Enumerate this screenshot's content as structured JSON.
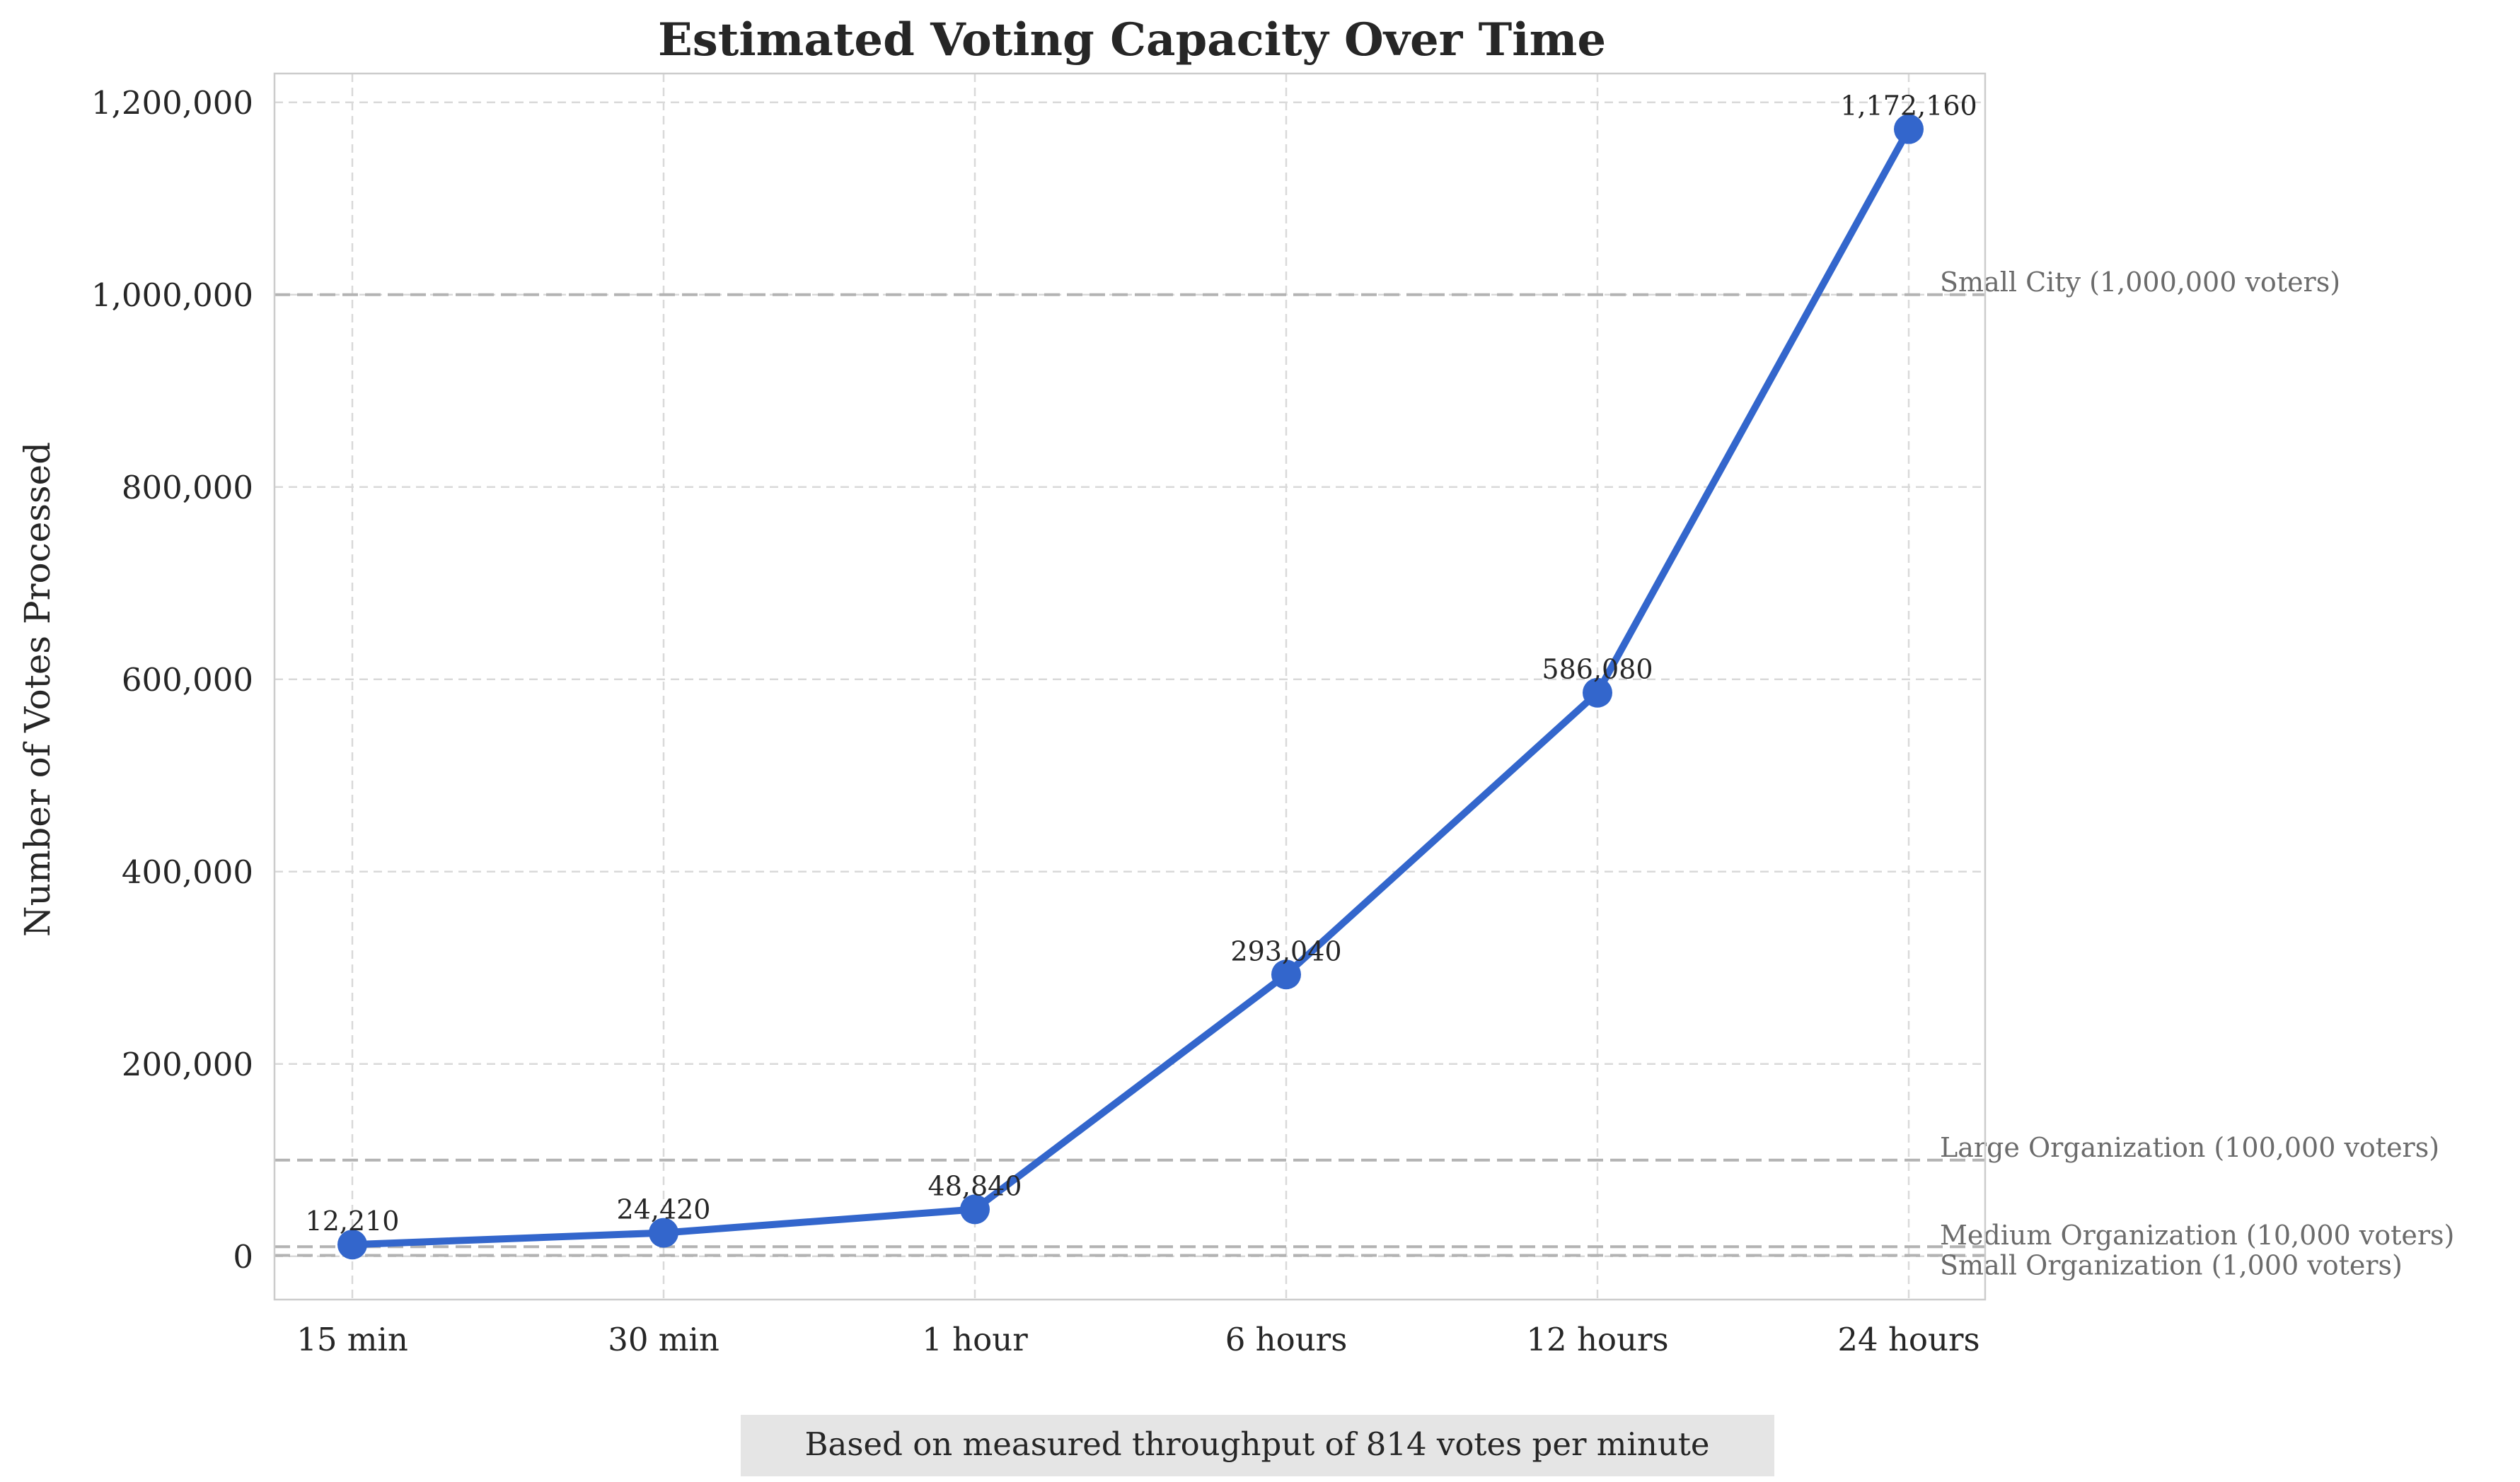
{
  "chart_data": {
    "type": "line",
    "title": "Estimated Voting Capacity Over Time",
    "xlabel": "",
    "ylabel": "Number of Votes Processed",
    "categories": [
      "15 min",
      "30 min",
      "1 hour",
      "6 hours",
      "12 hours",
      "24 hours"
    ],
    "series": [
      {
        "values": [
          12210,
          24420,
          48840,
          293040,
          586080,
          1172160
        ],
        "data_labels": [
          "12,210",
          "24,420",
          "48,840",
          "293,040",
          "586,080",
          "1,172,160"
        ],
        "color": "#3366cc"
      }
    ],
    "ylim": [
      -45000,
      1230000
    ],
    "yticks": [
      0,
      200000,
      400000,
      600000,
      800000,
      1000000,
      1200000
    ],
    "ytick_labels": [
      "0",
      "200,000",
      "400,000",
      "600,000",
      "800,000",
      "1,000,000",
      "1,200,000"
    ],
    "reference_lines": [
      {
        "value": 1000000,
        "label": "Small City (1,000,000 voters)"
      },
      {
        "value": 100000,
        "label": "Large Organization (100,000 voters)"
      },
      {
        "value": 10000,
        "label": "Medium Organization (10,000 voters)"
      },
      {
        "value": 1000,
        "label": "Small Organization (1,000 voters)"
      }
    ],
    "grid": true,
    "footnote": "Based on measured throughput of 814 votes per minute",
    "colors": {
      "line": "#3366cc",
      "grid": "#d9d9d9",
      "reference": "#b3b3b3",
      "reference_text": "#6b6b6b",
      "footnote_box": "#e5e5e5"
    }
  }
}
